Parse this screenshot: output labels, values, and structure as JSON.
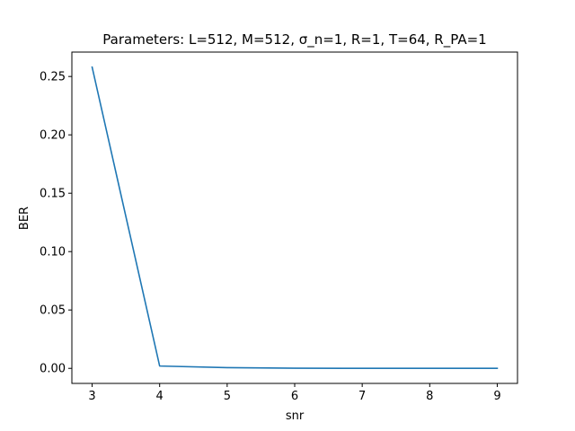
{
  "chart_data": {
    "type": "line",
    "title": "Parameters: L=512, M=512, σ_n=1, R=1, T=64, R_PA=1",
    "xlabel": "snr",
    "ylabel": "BER",
    "x": [
      3,
      4,
      5,
      6,
      7,
      8,
      9
    ],
    "series": [
      {
        "values": [
          0.258,
          0.002,
          0.0006,
          0.0001,
          0.0,
          0.0,
          0.0
        ],
        "color": "#1f77b4"
      }
    ],
    "xlim": [
      2.7,
      9.3
    ],
    "ylim": [
      -0.0129,
      0.2709
    ],
    "xticks": [
      3,
      4,
      5,
      6,
      7,
      8,
      9
    ],
    "xtick_labels": [
      "3",
      "4",
      "5",
      "6",
      "7",
      "8",
      "9"
    ],
    "yticks": [
      0.0,
      0.05,
      0.1,
      0.15,
      0.2,
      0.25
    ],
    "ytick_labels": [
      "0.00",
      "0.05",
      "0.10",
      "0.15",
      "0.20",
      "0.25"
    ],
    "grid": false,
    "legend": false
  }
}
